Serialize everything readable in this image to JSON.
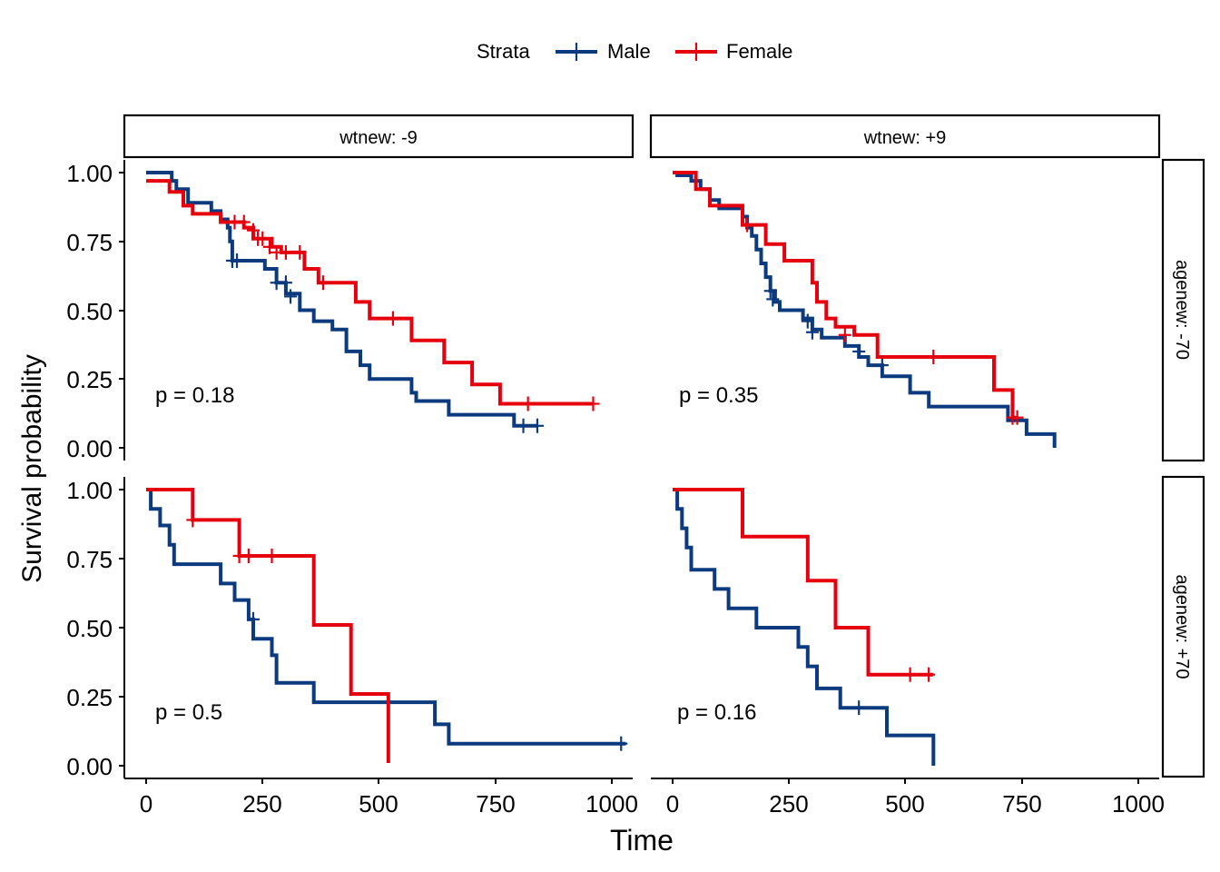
{
  "chart_data": {
    "type": "line",
    "subtype": "kaplan-meier-survival",
    "xlabel": "Time",
    "ylabel": "Survival probability",
    "xlim": [
      0,
      1000
    ],
    "ylim": [
      0,
      1
    ],
    "xticks": [
      "0",
      "250",
      "500",
      "750",
      "1000"
    ],
    "yticks": [
      "0.00",
      "0.25",
      "0.50",
      "0.75",
      "1.00"
    ],
    "grid": false,
    "legend": {
      "title": "Strata",
      "position": "top",
      "entries": [
        {
          "name": "Male",
          "color": "#0b3a7e"
        },
        {
          "name": "Female",
          "color": "#e6000e"
        }
      ]
    },
    "col_strip": [
      "wtnew: -9",
      "wtnew: +9"
    ],
    "row_strip": [
      "agenew: -70",
      "agenew: +70"
    ],
    "panels": [
      {
        "row": 0,
        "col": 0,
        "p_label": "p = 0.18",
        "series": [
          {
            "name": "Male",
            "steps": [
              [
                0,
                1.0
              ],
              [
                55,
                0.97
              ],
              [
                65,
                0.94
              ],
              [
                90,
                0.89
              ],
              [
                140,
                0.86
              ],
              [
                160,
                0.83
              ],
              [
                175,
                0.8
              ],
              [
                180,
                0.75
              ],
              [
                185,
                0.68
              ],
              [
                255,
                0.65
              ],
              [
                280,
                0.6
              ],
              [
                300,
                0.56
              ],
              [
                330,
                0.5
              ],
              [
                360,
                0.46
              ],
              [
                400,
                0.43
              ],
              [
                430,
                0.35
              ],
              [
                460,
                0.3
              ],
              [
                480,
                0.25
              ],
              [
                570,
                0.2
              ],
              [
                580,
                0.17
              ],
              [
                650,
                0.12
              ],
              [
                790,
                0.08
              ],
              [
                840,
                0.08
              ]
            ],
            "censor": [
              [
                185,
                0.68
              ],
              [
                195,
                0.68
              ],
              [
                280,
                0.6
              ],
              [
                300,
                0.6
              ],
              [
                310,
                0.55
              ],
              [
                810,
                0.08
              ],
              [
                840,
                0.08
              ]
            ]
          },
          {
            "name": "Female",
            "steps": [
              [
                0,
                0.97
              ],
              [
                50,
                0.93
              ],
              [
                80,
                0.88
              ],
              [
                100,
                0.85
              ],
              [
                160,
                0.82
              ],
              [
                210,
                0.8
              ],
              [
                230,
                0.76
              ],
              [
                270,
                0.73
              ],
              [
                290,
                0.71
              ],
              [
                340,
                0.65
              ],
              [
                370,
                0.6
              ],
              [
                450,
                0.53
              ],
              [
                480,
                0.47
              ],
              [
                570,
                0.39
              ],
              [
                640,
                0.31
              ],
              [
                700,
                0.23
              ],
              [
                760,
                0.16
              ],
              [
                960,
                0.16
              ]
            ],
            "censor": [
              [
                190,
                0.82
              ],
              [
                210,
                0.82
              ],
              [
                230,
                0.79
              ],
              [
                240,
                0.76
              ],
              [
                250,
                0.76
              ],
              [
                265,
                0.73
              ],
              [
                280,
                0.71
              ],
              [
                300,
                0.71
              ],
              [
                330,
                0.71
              ],
              [
                380,
                0.6
              ],
              [
                530,
                0.47
              ],
              [
                820,
                0.16
              ],
              [
                960,
                0.16
              ]
            ]
          }
        ]
      },
      {
        "row": 0,
        "col": 1,
        "p_label": "p = 0.35",
        "series": [
          {
            "name": "Male",
            "steps": [
              [
                0,
                1.0
              ],
              [
                10,
                0.99
              ],
              [
                40,
                0.97
              ],
              [
                60,
                0.94
              ],
              [
                80,
                0.9
              ],
              [
                100,
                0.87
              ],
              [
                150,
                0.84
              ],
              [
                160,
                0.8
              ],
              [
                170,
                0.77
              ],
              [
                180,
                0.72
              ],
              [
                190,
                0.67
              ],
              [
                200,
                0.62
              ],
              [
                210,
                0.57
              ],
              [
                220,
                0.53
              ],
              [
                230,
                0.5
              ],
              [
                280,
                0.47
              ],
              [
                300,
                0.43
              ],
              [
                320,
                0.4
              ],
              [
                370,
                0.37
              ],
              [
                400,
                0.33
              ],
              [
                420,
                0.3
              ],
              [
                450,
                0.26
              ],
              [
                510,
                0.2
              ],
              [
                550,
                0.15
              ],
              [
                720,
                0.1
              ],
              [
                760,
                0.05
              ],
              [
                820,
                0.0
              ]
            ],
            "censor": [
              [
                210,
                0.57
              ],
              [
                215,
                0.54
              ],
              [
                290,
                0.46
              ],
              [
                300,
                0.42
              ],
              [
                400,
                0.35
              ],
              [
                450,
                0.3
              ]
            ]
          },
          {
            "name": "Female",
            "steps": [
              [
                0,
                1.0
              ],
              [
                50,
                0.94
              ],
              [
                80,
                0.88
              ],
              [
                150,
                0.81
              ],
              [
                200,
                0.74
              ],
              [
                240,
                0.68
              ],
              [
                300,
                0.6
              ],
              [
                310,
                0.53
              ],
              [
                330,
                0.47
              ],
              [
                350,
                0.44
              ],
              [
                390,
                0.41
              ],
              [
                440,
                0.33
              ],
              [
                690,
                0.21
              ],
              [
                730,
                0.11
              ],
              [
                740,
                0.11
              ]
            ],
            "censor": [
              [
                160,
                0.81
              ],
              [
                370,
                0.41
              ],
              [
                560,
                0.33
              ],
              [
                730,
                0.11
              ],
              [
                740,
                0.11
              ]
            ]
          }
        ]
      },
      {
        "row": 1,
        "col": 0,
        "p_label": "p = 0.5",
        "series": [
          {
            "name": "Male",
            "steps": [
              [
                0,
                1.0
              ],
              [
                10,
                0.93
              ],
              [
                30,
                0.87
              ],
              [
                50,
                0.8
              ],
              [
                60,
                0.73
              ],
              [
                160,
                0.66
              ],
              [
                190,
                0.6
              ],
              [
                220,
                0.53
              ],
              [
                230,
                0.46
              ],
              [
                270,
                0.4
              ],
              [
                280,
                0.3
              ],
              [
                360,
                0.23
              ],
              [
                620,
                0.15
              ],
              [
                650,
                0.08
              ],
              [
                1030,
                0.08
              ]
            ],
            "censor": [
              [
                230,
                0.53
              ],
              [
                1020,
                0.08
              ]
            ]
          },
          {
            "name": "Female",
            "steps": [
              [
                0,
                1.0
              ],
              [
                100,
                0.89
              ],
              [
                200,
                0.76
              ],
              [
                360,
                0.51
              ],
              [
                440,
                0.26
              ],
              [
                520,
                0.01
              ]
            ],
            "censor": [
              [
                100,
                0.89
              ],
              [
                200,
                0.76
              ],
              [
                220,
                0.76
              ],
              [
                270,
                0.76
              ]
            ]
          }
        ]
      },
      {
        "row": 1,
        "col": 1,
        "p_label": "p = 0.16",
        "series": [
          {
            "name": "Male",
            "steps": [
              [
                0,
                1.0
              ],
              [
                10,
                0.93
              ],
              [
                20,
                0.86
              ],
              [
                30,
                0.79
              ],
              [
                40,
                0.71
              ],
              [
                90,
                0.64
              ],
              [
                120,
                0.57
              ],
              [
                180,
                0.5
              ],
              [
                270,
                0.43
              ],
              [
                290,
                0.36
              ],
              [
                310,
                0.28
              ],
              [
                360,
                0.21
              ],
              [
                460,
                0.11
              ],
              [
                560,
                0.0
              ]
            ],
            "censor": [
              [
                400,
                0.21
              ]
            ]
          },
          {
            "name": "Female",
            "steps": [
              [
                0,
                1.0
              ],
              [
                150,
                0.83
              ],
              [
                290,
                0.67
              ],
              [
                350,
                0.5
              ],
              [
                420,
                0.33
              ],
              [
                560,
                0.33
              ]
            ],
            "censor": [
              [
                510,
                0.33
              ],
              [
                550,
                0.33
              ]
            ]
          }
        ]
      }
    ]
  }
}
